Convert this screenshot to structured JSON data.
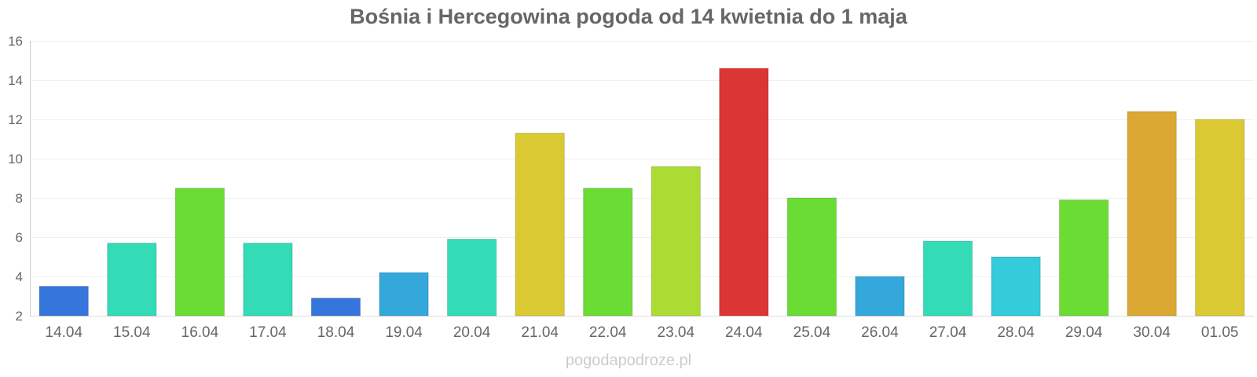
{
  "chart_data": {
    "type": "bar",
    "title": "Bośnia i Hercegowina pogoda od 14 kwietnia do 1 maja",
    "xlabel": "",
    "ylabel": "",
    "categories": [
      "14.04",
      "15.04",
      "16.04",
      "17.04",
      "18.04",
      "19.04",
      "20.04",
      "21.04",
      "22.04",
      "23.04",
      "24.04",
      "25.04",
      "26.04",
      "27.04",
      "28.04",
      "29.04",
      "30.04",
      "01.05"
    ],
    "values": [
      3.5,
      5.7,
      8.5,
      5.7,
      2.9,
      4.2,
      5.9,
      11.3,
      8.5,
      9.6,
      14.6,
      8.0,
      4.0,
      5.8,
      5.0,
      7.9,
      12.4,
      12.0
    ],
    "colors": [
      "#3576dc",
      "#34dbb7",
      "#6bdc34",
      "#34dbb7",
      "#3576dc",
      "#34a7db",
      "#34dbb7",
      "#dbc934",
      "#6bdc34",
      "#acdc34",
      "#dc3535",
      "#6bdc34",
      "#34a7db",
      "#34dbb7",
      "#34cbdb",
      "#6bdc34",
      "#dba834",
      "#dbc934"
    ],
    "yticks": [
      "2",
      "4",
      "6",
      "8",
      "10",
      "12",
      "14",
      "16"
    ],
    "ylim": [
      2,
      16
    ],
    "grid": true,
    "legend": "none"
  },
  "watermark": "pogodapodroze.pl"
}
